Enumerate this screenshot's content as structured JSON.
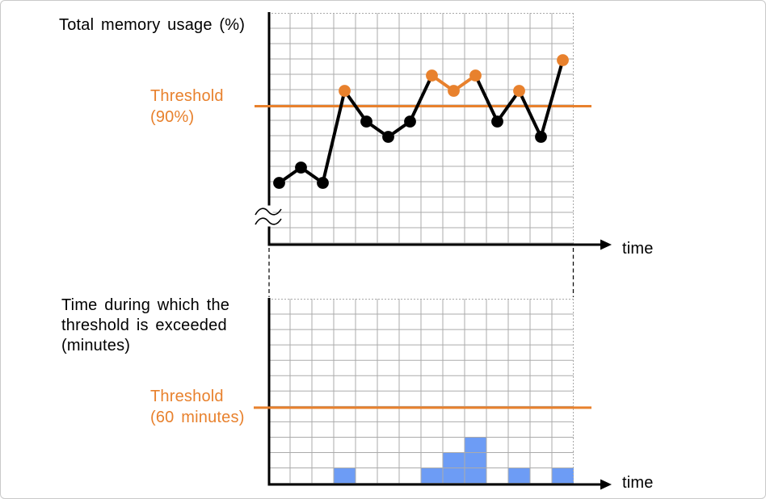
{
  "labels": {
    "top_title": "Total memory usage (%)",
    "top_threshold_lines": [
      "Threshold",
      "(90%)"
    ],
    "top_time": "time",
    "bottom_title_lines": [
      "Time during which the",
      "threshold is exceeded",
      "(minutes)"
    ],
    "bottom_threshold_lines": [
      "Threshold",
      "(60 minutes)"
    ],
    "bottom_time": "time"
  },
  "colors": {
    "orange": "#E8812D",
    "blue": "#6D9CF5",
    "black": "#000000",
    "grid": "#ABABAB",
    "grid_border": "#A9A9A9",
    "page_border": "#C9C9C9"
  },
  "chart_data": [
    {
      "id": "total-memory-usage",
      "type": "line",
      "title": "Total memory usage (%)",
      "xlabel": "time",
      "x": [
        1,
        2,
        3,
        4,
        5,
        6,
        7,
        8,
        9,
        10,
        11,
        12,
        13,
        14
      ],
      "values": [
        85,
        86,
        85,
        91,
        89,
        88,
        89,
        92,
        91,
        92,
        89,
        91,
        88,
        93
      ],
      "unit": "%",
      "threshold": {
        "value": 90,
        "label": "Threshold (90%)"
      },
      "highlight_above_threshold": true,
      "y_axis_break": true,
      "visible_ylim": [
        81,
        96
      ],
      "grid": true,
      "legend": false
    },
    {
      "id": "threshold-exceeded-duration",
      "type": "bar",
      "title": "Time during which the threshold is exceeded (minutes)",
      "xlabel": "time",
      "x": [
        1,
        2,
        3,
        4,
        5,
        6,
        7,
        8,
        9,
        10,
        11,
        12,
        13,
        14
      ],
      "values": [
        0,
        0,
        0,
        12,
        0,
        0,
        0,
        12,
        24,
        36,
        0,
        12,
        0,
        12
      ],
      "unit": "minutes",
      "minutes_per_grid_row": 12,
      "threshold": {
        "value": 60,
        "label": "Threshold (60 minutes)"
      },
      "visible_ylim": [
        0,
        144
      ],
      "grid": true,
      "legend": false
    }
  ]
}
